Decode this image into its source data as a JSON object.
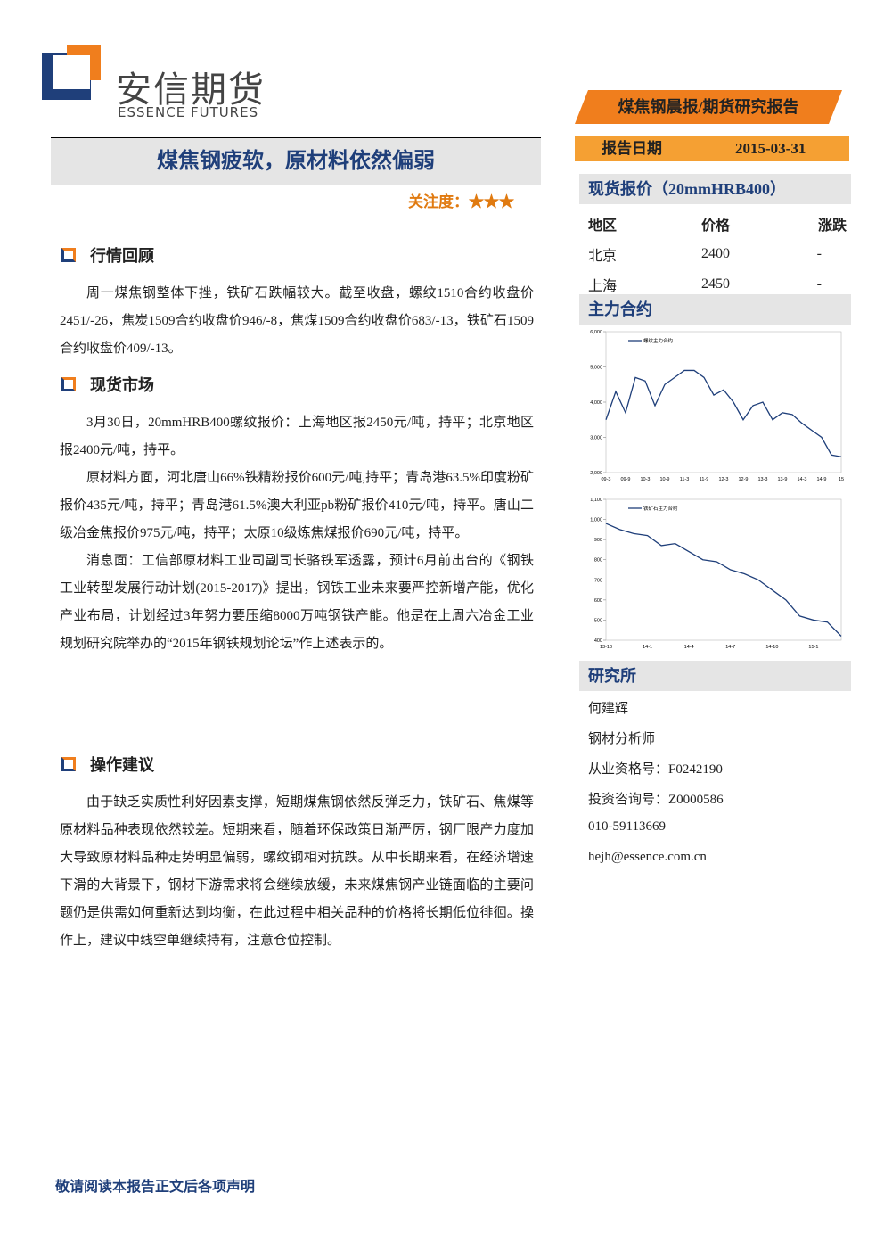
{
  "header": {
    "logo_cn": "安信期货",
    "logo_en": "ESSENCE FUTURES",
    "report_type": "煤焦钢晨报/期货研究报告",
    "date_label": "报告日期",
    "date": "2015-03-31"
  },
  "title": "煤焦钢疲软，原材料依然偏弱",
  "attention": "关注度：★★★",
  "sections": [
    {
      "heading": "行情回顾",
      "paragraphs": [
        "周一煤焦钢整体下挫，铁矿石跌幅较大。截至收盘，螺纹1510合约收盘价2451/-26，焦炭1509合约收盘价946/-8，焦煤1509合约收盘价683/-13，铁矿石1509合约收盘价409/-13。"
      ]
    },
    {
      "heading": "现货市场",
      "paragraphs": [
        "3月30日，20mmHRB400螺纹报价：上海地区报2450元/吨，持平；北京地区报2400元/吨，持平。",
        "原材料方面，河北唐山66%铁精粉报价600元/吨,持平；青岛港63.5%印度粉矿报价435元/吨，持平；青岛港61.5%澳大利亚pb粉矿报价410元/吨，持平。唐山二级冶金焦报价975元/吨，持平；太原10级炼焦煤报价690元/吨，持平。",
        "消息面：工信部原材料工业司副司长骆铁军透露，预计6月前出台的《钢铁工业转型发展行动计划(2015-2017)》提出，钢铁工业未来要严控新增产能，优化产业布局，计划经过3年努力要压缩8000万吨钢铁产能。他是在上周六冶金工业规划研究院举办的“2015年钢铁规划论坛”作上述表示的。"
      ]
    },
    {
      "heading": "操作建议",
      "paragraphs": [
        "由于缺乏实质性利好因素支撑，短期煤焦钢依然反弹乏力，铁矿石、焦煤等原材料品种表现依然较差。短期来看，随着环保政策日渐严厉，钢厂限产力度加大导致原材料品种走势明显偏弱，螺纹钢相对抗跌。从中长期来看，在经济增速下滑的大背景下，钢材下游需求将会继续放缓，未来煤焦钢产业链面临的主要问题仍是供需如何重新达到均衡，在此过程中相关品种的价格将长期低位徘徊。操作上，建议中线空单继续持有，注意仓位控制。"
      ]
    }
  ],
  "sidebar": {
    "spot_heading": "现货报价（20mmHRB400）",
    "spot_columns": [
      "地区",
      "价格",
      "涨跌"
    ],
    "spot_rows": [
      [
        "北京",
        "2400",
        "-"
      ],
      [
        "上海",
        "2450",
        "-"
      ]
    ],
    "contract_heading": "主力合约",
    "research_heading": "研究所",
    "research_lines": [
      "何建辉",
      "钢材分析师",
      "从业资格号：F0242190",
      "投资咨询号：Z0000586",
      "010-59113669",
      "hejh@essence.com.cn"
    ]
  },
  "chart_data": [
    {
      "type": "line",
      "categories": [
        "09-3",
        null,
        "09-9",
        null,
        "10-3",
        null,
        "10-9",
        null,
        "11-3",
        null,
        "11-9",
        null,
        "12-3",
        null,
        "12-9",
        null,
        "13-3",
        null,
        "13-9",
        null,
        "14-3",
        null,
        "14-9",
        null,
        "15"
      ],
      "series": [
        {
          "name": "螺纹主力合约",
          "color": "#1f3f7a",
          "values": [
            3500,
            4300,
            3700,
            4700,
            4600,
            3900,
            4500,
            4700,
            4900,
            4900,
            4700,
            4200,
            4350,
            4000,
            3500,
            3900,
            4000,
            3500,
            3700,
            3650,
            3400,
            3200,
            3000,
            2500,
            2450
          ]
        }
      ],
      "ylim": [
        2000,
        6000
      ],
      "yticks": [
        {
          "value": 2000,
          "label": "2,000"
        },
        {
          "value": 3000,
          "label": "3,000"
        },
        {
          "value": 4000,
          "label": "4,000"
        },
        {
          "value": 5000,
          "label": "5,000"
        },
        {
          "value": 6000,
          "label": "6,000"
        }
      ]
    },
    {
      "type": "line",
      "categories": [
        "13-10",
        null,
        null,
        "14-1",
        null,
        null,
        "14-4",
        null,
        null,
        "14-7",
        null,
        null,
        "14-10",
        null,
        null,
        "15-1",
        null,
        null
      ],
      "series": [
        {
          "name": "铁矿石主力合约",
          "color": "#1f3f7a",
          "values": [
            980,
            950,
            930,
            920,
            870,
            880,
            840,
            800,
            790,
            750,
            730,
            700,
            650,
            600,
            520,
            500,
            490,
            420
          ]
        }
      ],
      "ylim": [
        400,
        1100
      ],
      "yticks": [
        400,
        500,
        600,
        700,
        800,
        900,
        {
          "value": 1000,
          "label": "1,000"
        },
        {
          "value": 1100,
          "label": "1,100"
        }
      ]
    }
  ],
  "footer": "敬请阅读本报告正文后各项声明"
}
